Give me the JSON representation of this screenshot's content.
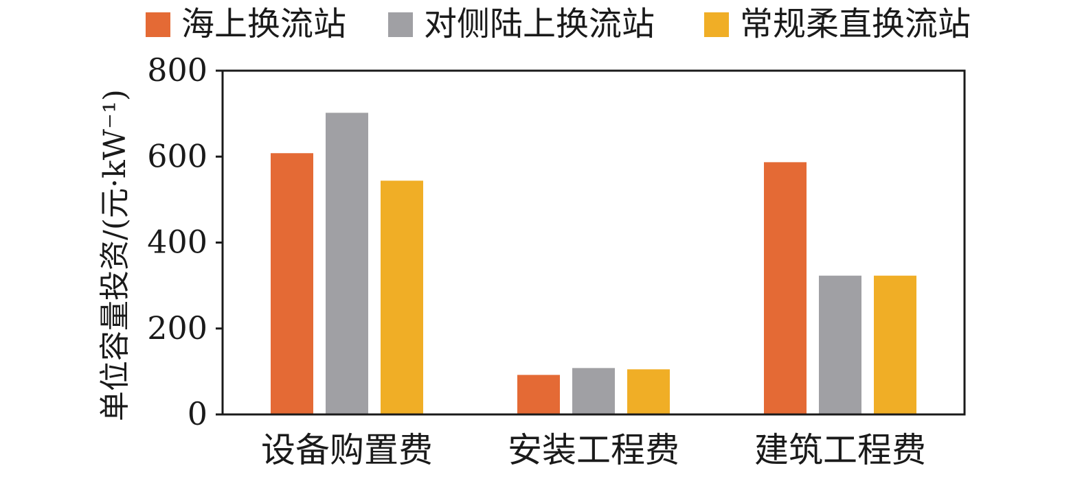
{
  "chart_data": {
    "type": "bar",
    "categories": [
      "设备购置费",
      "安装工程费",
      "建筑工程费"
    ],
    "series": [
      {
        "name": "海上换流站",
        "color": "#E46A35",
        "values": [
          608,
          92,
          587
        ]
      },
      {
        "name": "对侧陆上换流站",
        "color": "#A0A0A4",
        "values": [
          702,
          108,
          323
        ]
      },
      {
        "name": "常规柔直换流站",
        "color": "#F0AE26",
        "values": [
          544,
          105,
          323
        ]
      }
    ],
    "ylabel": "单位容量投资/(元·kW⁻¹)",
    "ylim": [
      0,
      800
    ],
    "yticks": [
      0,
      200,
      400,
      600,
      800
    ],
    "legend_position": "top",
    "grid": false
  }
}
